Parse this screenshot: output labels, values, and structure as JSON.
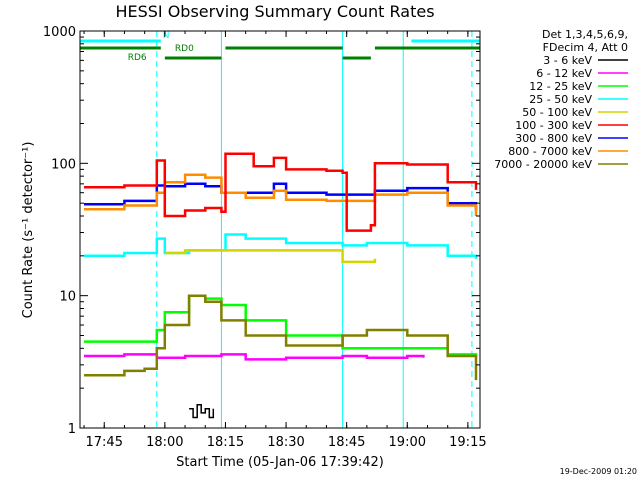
{
  "chart_data": {
    "type": "line",
    "title": "HESSI Observing Summary Count Rates",
    "xlabel": "Start Time (05-Jan-06 17:39:42)",
    "ylabel": "Count Rate (s⁻¹ detector⁻¹)",
    "x_axis": {
      "unit": "time",
      "range": [
        "17:39",
        "19:18"
      ],
      "ticks": [
        "17:45",
        "18:00",
        "18:15",
        "18:30",
        "18:45",
        "19:00",
        "19:15"
      ]
    },
    "y_axis": {
      "scale": "log",
      "range": [
        1,
        1000
      ],
      "ticks": [
        "1",
        "10",
        "100",
        "1000"
      ]
    },
    "legend": {
      "placement": "right",
      "header": [
        "Det 1,3,4,5,6,9,",
        "FDecim 4, Att 0"
      ],
      "entries": [
        {
          "label": "3 - 6 keV",
          "color": "#000000"
        },
        {
          "label": "6 - 12 keV",
          "color": "#ff00ff"
        },
        {
          "label": "12 - 25 keV",
          "color": "#00ff00"
        },
        {
          "label": "25 - 50 keV",
          "color": "#00ffff"
        },
        {
          "label": "50 - 100 keV",
          "color": "#d4d400"
        },
        {
          "label": "100 - 300 keV",
          "color": "#ff0000"
        },
        {
          "label": "300 - 800 keV",
          "color": "#0000ff"
        },
        {
          "label": "800 - 7000 keV",
          "color": "#ff8c00"
        },
        {
          "label": "7000 - 20000 keV",
          "color": "#808000"
        }
      ]
    },
    "flags": [
      {
        "label": "N",
        "color": "#00ffff",
        "segments": [
          [
            "17:39",
            "17:59"
          ],
          [
            "19:01",
            "19:18"
          ]
        ]
      },
      {
        "label": "RD0",
        "color": "#008000",
        "segments": [
          [
            "17:39",
            "17:59"
          ],
          [
            "18:15",
            "18:44"
          ],
          [
            "18:52",
            "19:18"
          ]
        ]
      },
      {
        "label": "RD6",
        "color": "#008000",
        "segments": [
          [
            "18:00",
            "18:14"
          ],
          [
            "18:44",
            "18:51"
          ]
        ]
      }
    ],
    "vertical_markers": {
      "solid": [
        "17:39",
        "18:14",
        "18:44",
        "18:59"
      ],
      "dashed": [
        "17:58",
        "19:16"
      ]
    },
    "series": [
      {
        "name": "3 - 6 keV",
        "color": "#000000",
        "x": [
          "18:06",
          "18:07",
          "18:08",
          "18:09",
          "18:10",
          "18:11",
          "18:12"
        ],
        "y": [
          1.4,
          1.2,
          1.5,
          1.3,
          1.4,
          1.2,
          1.4
        ]
      },
      {
        "name": "6 - 12 keV",
        "color": "#ff00ff",
        "x": [
          "17:40",
          "17:50",
          "17:58",
          "18:05",
          "18:14",
          "18:20",
          "18:30",
          "18:44",
          "18:50",
          "19:00",
          "19:04"
        ],
        "y": [
          3.5,
          3.6,
          3.4,
          3.5,
          3.6,
          3.3,
          3.4,
          3.5,
          3.4,
          3.5,
          3.4
        ]
      },
      {
        "name": "12 - 25 keV",
        "color": "#00ff00",
        "x": [
          "17:40",
          "17:50",
          "17:58",
          "18:00",
          "18:06",
          "18:10",
          "18:14",
          "18:20",
          "18:30",
          "18:44",
          "18:50",
          "19:00",
          "19:10",
          "19:17"
        ],
        "y": [
          4.5,
          4.5,
          5.5,
          7.5,
          10,
          9.5,
          8.5,
          6.5,
          5,
          4,
          4,
          4,
          3.6,
          3.4
        ]
      },
      {
        "name": "25 - 50 keV",
        "color": "#00ffff",
        "x": [
          "17:40",
          "17:50",
          "17:58",
          "18:00",
          "18:06",
          "18:14",
          "18:15",
          "18:20",
          "18:30",
          "18:44",
          "18:50",
          "19:00",
          "19:10",
          "19:17"
        ],
        "y": [
          20,
          21,
          27,
          21,
          22,
          22,
          29,
          27,
          25,
          24,
          25,
          24,
          20,
          19
        ]
      },
      {
        "name": "50 - 100 keV",
        "color": "#d4d400",
        "x": [
          "18:00",
          "18:05",
          "18:10",
          "18:14",
          "18:44",
          "18:48",
          "18:52"
        ],
        "y": [
          21,
          22,
          22,
          22,
          18,
          18,
          19
        ]
      },
      {
        "name": "100 - 300 keV",
        "color": "#ff0000",
        "x": [
          "17:40",
          "17:50",
          "17:58",
          "18:00",
          "18:05",
          "18:10",
          "18:14",
          "18:15",
          "18:22",
          "18:27",
          "18:30",
          "18:40",
          "18:44",
          "18:45",
          "18:51",
          "18:52",
          "19:00",
          "19:10",
          "19:17"
        ],
        "y": [
          66,
          68,
          105,
          40,
          44,
          46,
          43,
          118,
          95,
          110,
          90,
          88,
          85,
          31,
          34,
          100,
          98,
          72,
          63
        ]
      },
      {
        "name": "300 - 800 keV",
        "color": "#0000ff",
        "x": [
          "17:40",
          "17:50",
          "17:58",
          "18:00",
          "18:05",
          "18:10",
          "18:14",
          "18:20",
          "18:27",
          "18:30",
          "18:40",
          "18:44",
          "18:52",
          "19:00",
          "19:10",
          "19:17"
        ],
        "y": [
          49,
          52,
          68,
          67,
          70,
          67,
          60,
          60,
          70,
          60,
          58,
          58,
          62,
          65,
          50,
          44
        ]
      },
      {
        "name": "800 - 7000 keV",
        "color": "#ff8c00",
        "x": [
          "17:40",
          "17:50",
          "17:58",
          "18:00",
          "18:05",
          "18:10",
          "18:14",
          "18:20",
          "18:27",
          "18:30",
          "18:40",
          "18:44",
          "18:52",
          "19:00",
          "19:10",
          "19:17"
        ],
        "y": [
          45,
          48,
          60,
          72,
          82,
          78,
          60,
          55,
          62,
          53,
          52,
          52,
          58,
          60,
          48,
          40
        ]
      },
      {
        "name": "7000 - 20000 keV",
        "color": "#808000",
        "x": [
          "17:40",
          "17:50",
          "17:55",
          "17:58",
          "18:00",
          "18:06",
          "18:10",
          "18:14",
          "18:20",
          "18:30",
          "18:44",
          "18:50",
          "19:00",
          "19:10",
          "19:17"
        ],
        "y": [
          2.5,
          2.7,
          2.8,
          4,
          6,
          10,
          9,
          6.5,
          5,
          4.2,
          5,
          5.5,
          5,
          3.5,
          2.3
        ]
      }
    ]
  },
  "footer": {
    "timestamp": "19-Dec-2009 01:20"
  }
}
